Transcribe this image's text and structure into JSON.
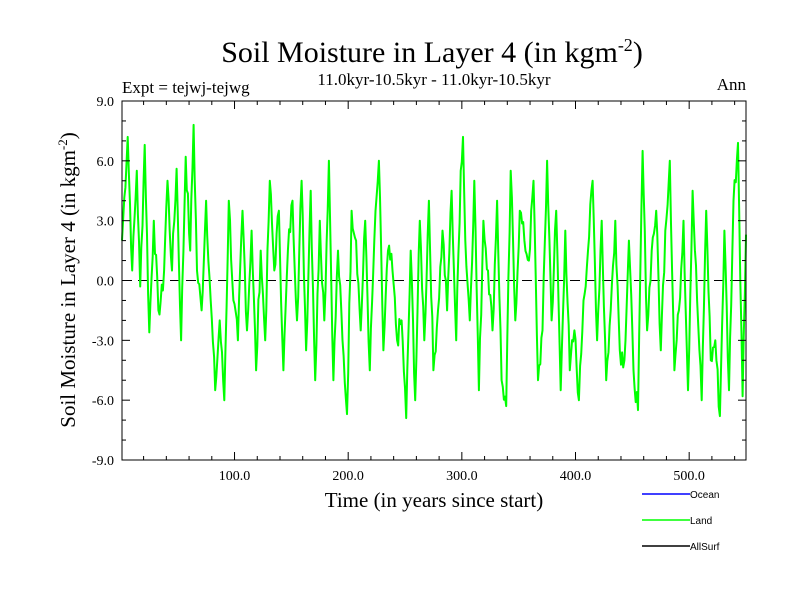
{
  "chart_data": {
    "type": "line",
    "title_main": "Soil Moisture in Layer 4 (in kgm",
    "title_sup": "-2",
    "title_close": ")",
    "subtitle_left": "Expt = tejwj-tejwg",
    "subtitle_center": "11.0kyr-10.5kyr - 11.0kyr-10.5kyr",
    "subtitle_right": "Ann",
    "xlabel": "Time (in years since start)",
    "ylabel_main": "Soil Moisture in Layer 4 (in kgm",
    "ylabel_sup": "-2",
    "ylabel_close": ")",
    "xlim": [
      1,
      550
    ],
    "ylim": [
      -9,
      9
    ],
    "xticks": [
      100,
      200,
      300,
      400,
      500
    ],
    "xtick_labels": [
      "100.0",
      "200.0",
      "300.0",
      "400.0",
      "500.0"
    ],
    "yticks": [
      -9,
      -6,
      -3,
      0,
      3,
      6,
      9
    ],
    "ytick_labels": [
      "-9.0",
      "-6.0",
      "-3.0",
      "0.0",
      "3.0",
      "6.0",
      "9.0"
    ],
    "zero_line": true,
    "grid": false,
    "legend": [
      {
        "name": "Ocean",
        "color": "#0000ff"
      },
      {
        "name": "Land",
        "color": "#00ff00"
      },
      {
        "name": "AllSurf",
        "color": "#000000"
      }
    ],
    "series": [
      {
        "name": "Land",
        "color": "#00ff00",
        "x": [
          1,
          6,
          10,
          14,
          17,
          21,
          25,
          29,
          33,
          37,
          41,
          45,
          49,
          53,
          57,
          61,
          64,
          67,
          71,
          75,
          79,
          83,
          87,
          91,
          95,
          99,
          103,
          107,
          111,
          115,
          119,
          123,
          127,
          131,
          135,
          139,
          143,
          147,
          151,
          155,
          159,
          163,
          167,
          171,
          175,
          179,
          183,
          187,
          191,
          195,
          199,
          203,
          207,
          211,
          215,
          219,
          223,
          227,
          231,
          235,
          239,
          243,
          247,
          251,
          255,
          259,
          263,
          267,
          271,
          275,
          279,
          283,
          287,
          291,
          295,
          299,
          301,
          303,
          307,
          311,
          315,
          319,
          323,
          327,
          331,
          335,
          339,
          343,
          347,
          351,
          355,
          359,
          363,
          367,
          371,
          375,
          379,
          383,
          387,
          391,
          395,
          399,
          403,
          407,
          411,
          415,
          419,
          423,
          427,
          431,
          435,
          439,
          443,
          447,
          451,
          455,
          459,
          463,
          467,
          471,
          475,
          479,
          483,
          487,
          491,
          495,
          499,
          503,
          507,
          511,
          515,
          519,
          523,
          527,
          531,
          535,
          539,
          543,
          547,
          550
        ],
        "values": [
          2.0,
          7.2,
          0.5,
          5.5,
          -0.3,
          6.8,
          -2.6,
          3.0,
          -1.5,
          -0.5,
          5.0,
          0.5,
          5.6,
          -3.0,
          6.2,
          1.5,
          7.8,
          0.5,
          -1.5,
          4.0,
          -1.0,
          -5.5,
          -2.0,
          -6.0,
          4.0,
          -1.0,
          -3.0,
          3.5,
          -2.5,
          2.5,
          -4.5,
          1.5,
          -3.0,
          5.0,
          0.5,
          3.5,
          -4.5,
          1.5,
          4.0,
          -2.0,
          5.0,
          -3.5,
          4.5,
          -5.0,
          3.0,
          -2.0,
          6.0,
          -5.0,
          1.5,
          -3.0,
          -6.7,
          3.5,
          2.0,
          -2.5,
          3.0,
          -4.5,
          2.0,
          6.0,
          -3.5,
          1.5,
          0.5,
          -3.0,
          -2.0,
          -6.9,
          1.5,
          -6.0,
          3.0,
          -3.0,
          4.0,
          -4.5,
          -1.5,
          2.5,
          -1.5,
          4.5,
          -3.0,
          5.5,
          7.2,
          2.0,
          -2.0,
          5.0,
          -5.5,
          3.0,
          0.5,
          -2.5,
          4.0,
          -5.0,
          -6.3,
          5.5,
          -2.0,
          3.5,
          2.0,
          1.0,
          5.0,
          -5.0,
          -2.5,
          6.0,
          -2.0,
          3.5,
          -5.5,
          2.5,
          -4.5,
          -2.5,
          -6.0,
          -1.0,
          1.5,
          5.0,
          -3.0,
          3.0,
          -5.0,
          -1.5,
          3.0,
          -3.5,
          -4.0,
          2.0,
          -4.5,
          -6.5,
          6.5,
          -2.5,
          1.5,
          3.5,
          -3.5,
          2.5,
          6.0,
          -4.5,
          -1.5,
          3.0,
          -5.5,
          4.5,
          -1.0,
          -6.0,
          3.5,
          -4.0,
          -3.0,
          -6.8,
          2.5,
          -5.5,
          4.0,
          6.9,
          -5.8,
          2.3
        ]
      },
      {
        "name": "Ocean",
        "color": "#0000ff",
        "x": [],
        "values": []
      },
      {
        "name": "AllSurf",
        "color": "#000000",
        "x": [],
        "values": []
      }
    ]
  }
}
